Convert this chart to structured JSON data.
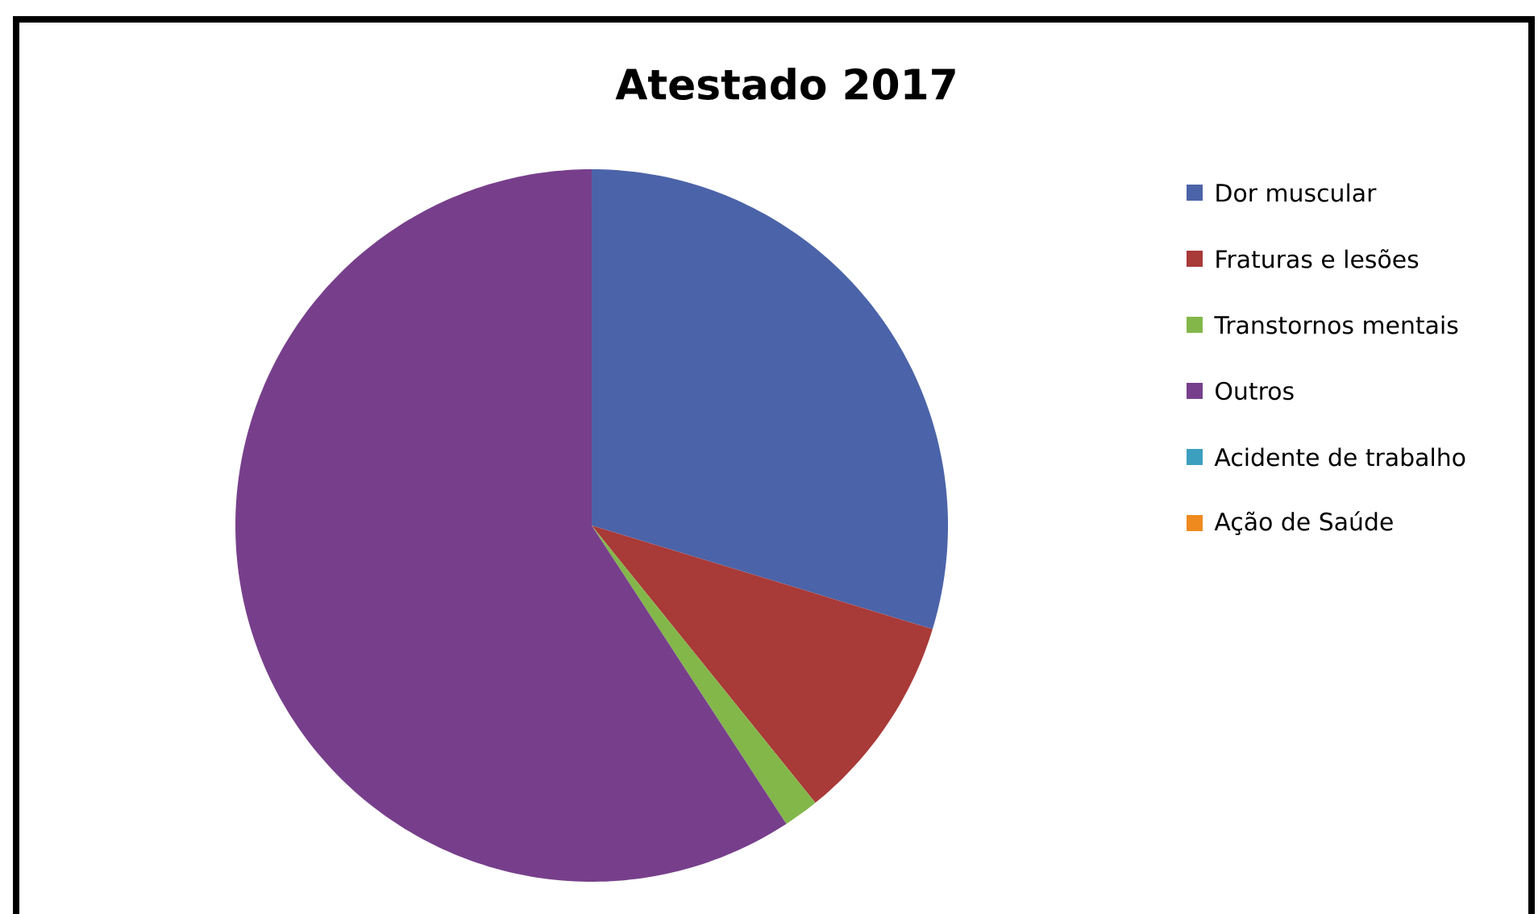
{
  "chart_data": {
    "type": "pie",
    "title": "Atestado 2017",
    "categories": [
      "Dor muscular",
      "Fraturas e lesões",
      "Transtornos mentais",
      "Outros",
      "Acidente de trabalho",
      "Ação de Saúde"
    ],
    "values": [
      29.7,
      9.5,
      1.6,
      59.2,
      0,
      0
    ],
    "colors": [
      "#4b63a8",
      "#a83a38",
      "#83b74a",
      "#773f8b",
      "#3c9fbf",
      "#ef8a1e"
    ],
    "legend": "right"
  }
}
